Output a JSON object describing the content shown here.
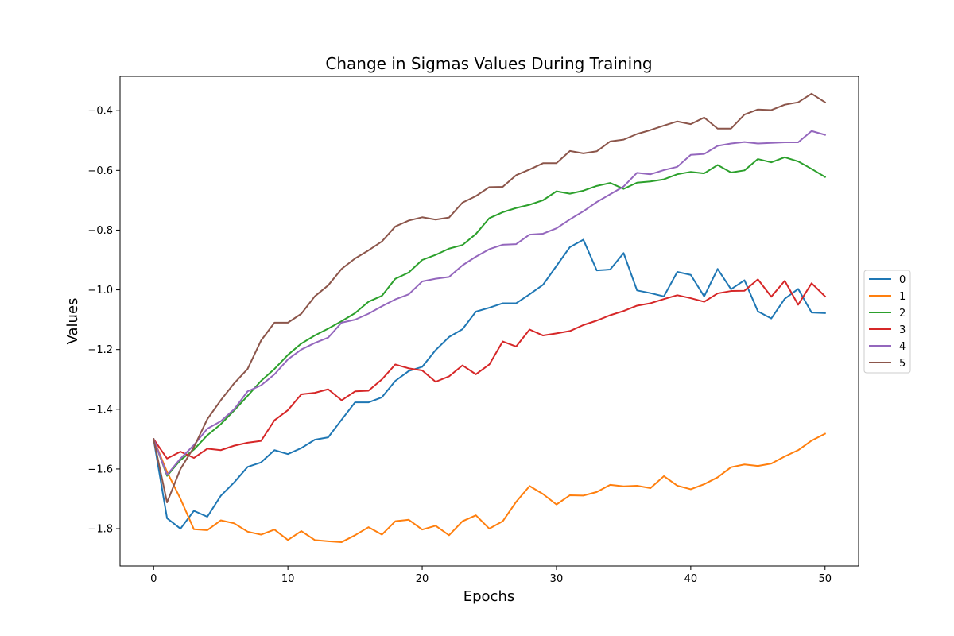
{
  "chart_data": {
    "type": "line",
    "title": "Change in Sigmas Values During Training",
    "xlabel": "Epochs",
    "ylabel": "Values",
    "xlim": [
      -2.5,
      52.5
    ],
    "ylim": [
      -1.925,
      -0.285
    ],
    "xticks": [
      0,
      10,
      20,
      30,
      40,
      50
    ],
    "yticks": [
      -1.8,
      -1.6,
      -1.4,
      -1.2,
      -1.0,
      -0.8,
      -0.6,
      -0.4
    ],
    "xtick_labels": [
      "0",
      "10",
      "20",
      "30",
      "40",
      "50"
    ],
    "ytick_labels": [
      "−1.8",
      "−1.6",
      "−1.4",
      "−1.2",
      "−1.0",
      "−0.8",
      "−0.6",
      "−0.4"
    ],
    "grid": false,
    "legend_position": "center-right-outside",
    "x": [
      0,
      1,
      2,
      3,
      4,
      5,
      6,
      7,
      8,
      9,
      10,
      11,
      12,
      13,
      14,
      15,
      16,
      17,
      18,
      19,
      20,
      21,
      22,
      23,
      24,
      25,
      26,
      27,
      28,
      29,
      30,
      31,
      32,
      33,
      34,
      35,
      36,
      37,
      38,
      39,
      40,
      41,
      42,
      43,
      44,
      45,
      46,
      47,
      48,
      49,
      50
    ],
    "series": [
      {
        "name": "0",
        "color": "#1f77b4",
        "values": [
          -1.5,
          -1.765,
          -1.8,
          -1.74,
          -1.76,
          -1.69,
          -1.645,
          -1.593,
          -1.578,
          -1.537,
          -1.55,
          -1.53,
          -1.502,
          -1.494,
          -1.435,
          -1.377,
          -1.377,
          -1.36,
          -1.305,
          -1.272,
          -1.258,
          -1.202,
          -1.158,
          -1.132,
          -1.073,
          -1.06,
          -1.045,
          -1.045,
          -1.015,
          -0.983,
          -0.92,
          -0.857,
          -0.832,
          -0.935,
          -0.932,
          -0.877,
          -1.002,
          -1.011,
          -1.022,
          -0.94,
          -0.95,
          -1.022,
          -0.93,
          -0.998,
          -0.968,
          -1.072,
          -1.096,
          -1.03,
          -0.997,
          -1.076,
          -1.078
        ]
      },
      {
        "name": "1",
        "color": "#ff7f0e",
        "values": [
          -1.5,
          -1.61,
          -1.7,
          -1.802,
          -1.805,
          -1.772,
          -1.782,
          -1.81,
          -1.82,
          -1.803,
          -1.838,
          -1.808,
          -1.838,
          -1.842,
          -1.845,
          -1.822,
          -1.795,
          -1.82,
          -1.775,
          -1.77,
          -1.803,
          -1.79,
          -1.822,
          -1.775,
          -1.755,
          -1.8,
          -1.775,
          -1.71,
          -1.657,
          -1.684,
          -1.719,
          -1.688,
          -1.689,
          -1.677,
          -1.653,
          -1.658,
          -1.656,
          -1.664,
          -1.624,
          -1.656,
          -1.668,
          -1.651,
          -1.628,
          -1.594,
          -1.585,
          -1.59,
          -1.582,
          -1.558,
          -1.537,
          -1.505,
          -1.482
        ]
      },
      {
        "name": "2",
        "color": "#2ca02c",
        "values": [
          -1.5,
          -1.623,
          -1.57,
          -1.535,
          -1.487,
          -1.45,
          -1.404,
          -1.355,
          -1.305,
          -1.265,
          -1.218,
          -1.18,
          -1.153,
          -1.13,
          -1.105,
          -1.078,
          -1.04,
          -1.02,
          -0.963,
          -0.942,
          -0.9,
          -0.883,
          -0.862,
          -0.85,
          -0.813,
          -0.76,
          -0.74,
          -0.726,
          -0.715,
          -0.7,
          -0.67,
          -0.678,
          -0.668,
          -0.652,
          -0.642,
          -0.662,
          -0.641,
          -0.637,
          -0.63,
          -0.613,
          -0.605,
          -0.61,
          -0.582,
          -0.607,
          -0.6,
          -0.562,
          -0.573,
          -0.556,
          -0.57,
          -0.595,
          -0.622
        ]
      },
      {
        "name": "3",
        "color": "#d62728",
        "values": [
          -1.5,
          -1.565,
          -1.542,
          -1.563,
          -1.532,
          -1.537,
          -1.522,
          -1.512,
          -1.506,
          -1.437,
          -1.403,
          -1.35,
          -1.345,
          -1.333,
          -1.37,
          -1.34,
          -1.338,
          -1.3,
          -1.25,
          -1.263,
          -1.27,
          -1.308,
          -1.29,
          -1.253,
          -1.283,
          -1.25,
          -1.173,
          -1.19,
          -1.133,
          -1.153,
          -1.146,
          -1.138,
          -1.118,
          -1.103,
          -1.085,
          -1.071,
          -1.053,
          -1.045,
          -1.031,
          -1.018,
          -1.028,
          -1.04,
          -1.012,
          -1.004,
          -1.003,
          -0.965,
          -1.023,
          -0.97,
          -1.05,
          -0.978,
          -1.022
        ]
      },
      {
        "name": "4",
        "color": "#9467bd",
        "values": [
          -1.5,
          -1.62,
          -1.565,
          -1.52,
          -1.465,
          -1.44,
          -1.4,
          -1.34,
          -1.32,
          -1.283,
          -1.233,
          -1.2,
          -1.178,
          -1.16,
          -1.11,
          -1.1,
          -1.08,
          -1.055,
          -1.032,
          -1.015,
          -0.972,
          -0.963,
          -0.957,
          -0.918,
          -0.889,
          -0.864,
          -0.849,
          -0.847,
          -0.815,
          -0.812,
          -0.794,
          -0.764,
          -0.737,
          -0.706,
          -0.68,
          -0.654,
          -0.608,
          -0.613,
          -0.599,
          -0.588,
          -0.548,
          -0.545,
          -0.518,
          -0.51,
          -0.505,
          -0.51,
          -0.508,
          -0.506,
          -0.506,
          -0.468,
          -0.481
        ]
      },
      {
        "name": "5",
        "color": "#8c564b",
        "values": [
          -1.5,
          -1.712,
          -1.6,
          -1.527,
          -1.433,
          -1.37,
          -1.313,
          -1.265,
          -1.17,
          -1.11,
          -1.11,
          -1.08,
          -1.022,
          -0.985,
          -0.93,
          -0.895,
          -0.868,
          -0.838,
          -0.788,
          -0.768,
          -0.757,
          -0.765,
          -0.758,
          -0.708,
          -0.686,
          -0.656,
          -0.655,
          -0.616,
          -0.597,
          -0.576,
          -0.576,
          -0.535,
          -0.543,
          -0.536,
          -0.503,
          -0.497,
          -0.478,
          -0.465,
          -0.45,
          -0.436,
          -0.445,
          -0.423,
          -0.46,
          -0.46,
          -0.413,
          -0.396,
          -0.398,
          -0.38,
          -0.372,
          -0.343,
          -0.372
        ]
      }
    ]
  }
}
